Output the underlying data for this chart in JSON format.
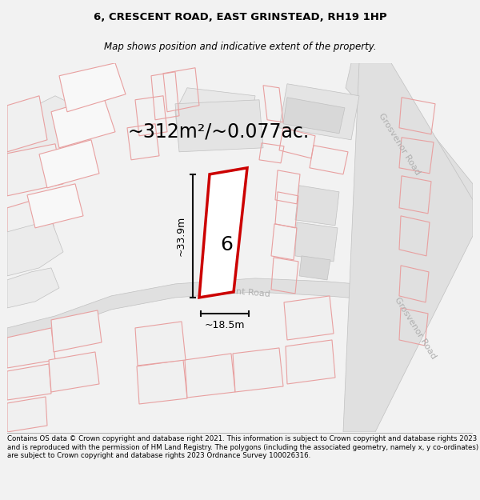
{
  "title_line1": "6, CRESCENT ROAD, EAST GRINSTEAD, RH19 1HP",
  "title_line2": "Map shows position and indicative extent of the property.",
  "area_text": "~312m²/~0.077ac.",
  "label_number": "6",
  "dim_height": "~33.9m",
  "dim_width": "~18.5m",
  "footer_text": "Contains OS data © Crown copyright and database right 2021. This information is subject to Crown copyright and database rights 2023 and is reproduced with the permission of HM Land Registry. The polygons (including the associated geometry, namely x, y co-ordinates) are subject to Crown copyright and database rights 2023 Ordnance Survey 100026316.",
  "bg_color": "#f2f2f2",
  "map_bg": "#ffffff",
  "road_fill": "#e0e0e0",
  "building_fill": "#d4d4d4",
  "plot_fill": "#ffffff",
  "plot_stroke": "#cc0000",
  "road_stroke": "#c0c0c0",
  "pink_stroke": "#e8a0a0",
  "dim_color": "#111111",
  "road_label_color": "#b0b0b0",
  "title_fontsize": 9.5,
  "subtitle_fontsize": 8.5,
  "area_fontsize": 17,
  "footer_fontsize": 6.2
}
